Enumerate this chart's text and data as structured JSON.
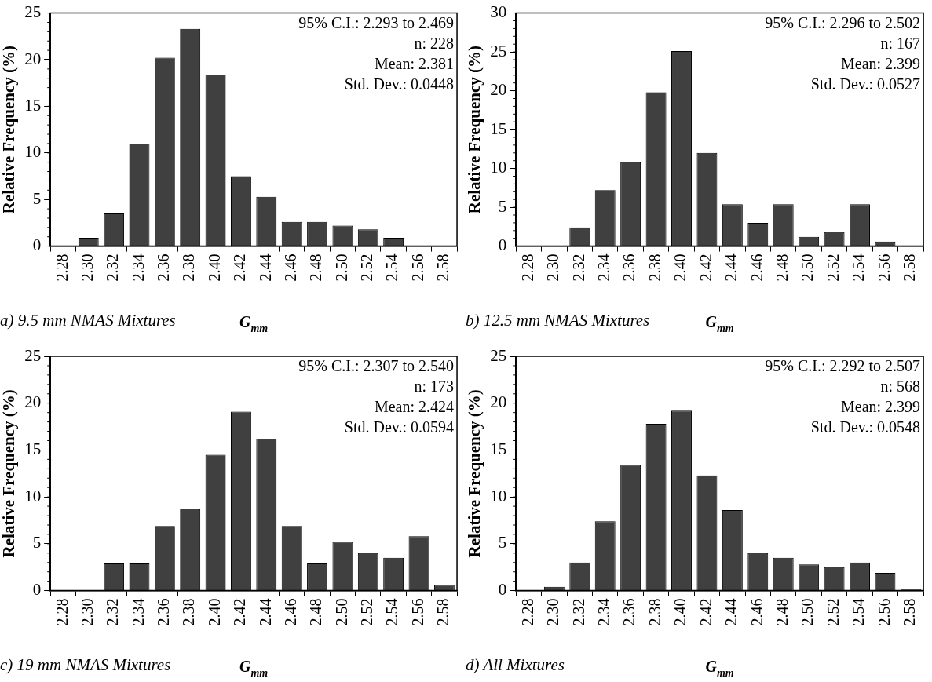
{
  "chart_data": [
    {
      "type": "bar",
      "title": "a) 9.5 mm NMAS Mixtures",
      "xlabel": "G$_{mm}$",
      "ylabel": "Relative Frequency (%)",
      "categories": [
        "2.28",
        "2.30",
        "2.32",
        "2.34",
        "2.36",
        "2.38",
        "2.40",
        "2.42",
        "2.44",
        "2.46",
        "2.48",
        "2.50",
        "2.52",
        "2.54",
        "2.56",
        "2.58"
      ],
      "values": [
        0,
        0.9,
        3.5,
        11,
        20.2,
        23.3,
        18.4,
        7.5,
        5.3,
        2.6,
        2.6,
        2.2,
        1.8,
        0.9,
        0,
        0
      ],
      "color": "#404040",
      "ylim": [
        0,
        25
      ],
      "yticks": [
        0,
        5,
        10,
        15,
        20,
        25
      ],
      "grid": false,
      "legend": false,
      "annotations": [
        "95% C.I.: 2.293 to 2.469",
        "n: 228",
        "Mean: 2.381",
        "Std. Dev.: 0.0448"
      ]
    },
    {
      "type": "bar",
      "title": "b) 12.5 mm NMAS Mixtures",
      "xlabel": "G$_{mm}$",
      "ylabel": "Relative Frequency (%)",
      "categories": [
        "2.28",
        "2.30",
        "2.32",
        "2.34",
        "2.36",
        "2.38",
        "2.40",
        "2.42",
        "2.44",
        "2.46",
        "2.48",
        "2.50",
        "2.52",
        "2.54",
        "2.56",
        "2.58"
      ],
      "values": [
        0,
        0,
        2.4,
        7.2,
        10.8,
        19.8,
        25.1,
        12.0,
        5.4,
        3.0,
        5.4,
        1.2,
        1.8,
        5.4,
        0.6,
        0
      ],
      "color": "#404040",
      "ylim": [
        0,
        30
      ],
      "yticks": [
        0,
        5,
        10,
        15,
        20,
        25,
        30
      ],
      "grid": false,
      "legend": false,
      "annotations": [
        "95% C.I.: 2.296 to 2.502",
        "n: 167",
        "Mean: 2.399",
        "Std. Dev.: 0.0527"
      ]
    },
    {
      "type": "bar",
      "title": "c) 19 mm NMAS Mixtures",
      "xlabel": "G$_{mm}$",
      "ylabel": "Relative Frequency (%)",
      "categories": [
        "2.28",
        "2.30",
        "2.32",
        "2.34",
        "2.36",
        "2.38",
        "2.40",
        "2.42",
        "2.44",
        "2.46",
        "2.48",
        "2.50",
        "2.52",
        "2.54",
        "2.56",
        "2.58"
      ],
      "values": [
        0,
        0,
        2.9,
        2.9,
        6.9,
        8.7,
        14.5,
        19.1,
        16.2,
        6.9,
        2.9,
        5.2,
        4.0,
        3.5,
        5.8,
        0.6
      ],
      "color": "#404040",
      "ylim": [
        0,
        25
      ],
      "yticks": [
        0,
        5,
        10,
        15,
        20,
        25
      ],
      "grid": false,
      "legend": false,
      "annotations": [
        "95% C.I.: 2.307 to 2.540",
        "n: 173",
        "Mean: 2.424",
        "Std. Dev.: 0.0594"
      ]
    },
    {
      "type": "bar",
      "title": "d) All Mixtures",
      "xlabel": "G$_{mm}$",
      "ylabel": "Relative Frequency (%)",
      "categories": [
        "2.28",
        "2.30",
        "2.32",
        "2.34",
        "2.36",
        "2.38",
        "2.40",
        "2.42",
        "2.44",
        "2.46",
        "2.48",
        "2.50",
        "2.52",
        "2.54",
        "2.56",
        "2.58"
      ],
      "values": [
        0,
        0.4,
        3.0,
        7.4,
        13.4,
        17.8,
        19.2,
        12.3,
        8.6,
        4.0,
        3.5,
        2.8,
        2.5,
        3.0,
        1.9,
        0.2
      ],
      "color": "#404040",
      "ylim": [
        0,
        25
      ],
      "yticks": [
        0,
        5,
        10,
        15,
        20,
        25
      ],
      "grid": false,
      "legend": false,
      "annotations": [
        "95% C.I.: 2.292 to 2.507",
        "n: 568",
        "Mean: 2.399",
        "Std. Dev.: 0.0548"
      ]
    }
  ]
}
